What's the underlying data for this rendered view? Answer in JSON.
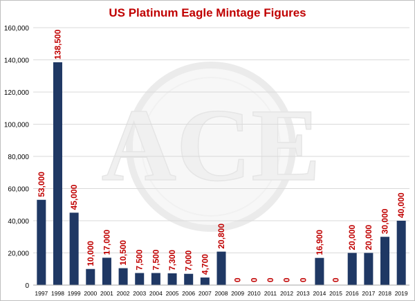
{
  "chart_data": {
    "type": "bar",
    "title": "US Platinum Eagle Mintage Figures",
    "xlabel": "",
    "ylabel": "",
    "categories": [
      "1997",
      "1998",
      "1999",
      "2000",
      "2001",
      "2002",
      "2003",
      "2004",
      "2005",
      "2006",
      "2007",
      "2008",
      "2009",
      "2010",
      "2011",
      "2012",
      "2013",
      "2014",
      "2015",
      "2016",
      "2017",
      "2018",
      "2019"
    ],
    "values": [
      53000,
      138500,
      45000,
      10000,
      17000,
      10500,
      7500,
      7500,
      7300,
      7000,
      4700,
      20800,
      0,
      0,
      0,
      0,
      0,
      16900,
      0,
      20000,
      20000,
      30000,
      40000
    ],
    "data_labels": [
      "53,000",
      "138,500",
      "45,000",
      "10,000",
      "17,000",
      "10,500",
      "7,500",
      "7,500",
      "7,300",
      "7,000",
      "4,700",
      "20,800",
      "0",
      "0",
      "0",
      "0",
      "0",
      "16,900",
      "0",
      "20,000",
      "20,000",
      "30,000",
      "40,000"
    ],
    "ylim": [
      0,
      160000
    ],
    "yticks": [
      0,
      20000,
      40000,
      60000,
      80000,
      100000,
      120000,
      140000,
      160000
    ],
    "ytick_labels": [
      "0",
      "20,000",
      "40,000",
      "60,000",
      "80,000",
      "100,000",
      "120,000",
      "140,000",
      "160,000"
    ],
    "grid": true,
    "legend": "none",
    "watermark": "ACE",
    "colors": {
      "bar": "#1f3864",
      "title": "#c00000",
      "data_label": "#c00000",
      "grid": "#d9d9d9",
      "axis_text": "#000000",
      "border": "#bfbfbf"
    }
  }
}
